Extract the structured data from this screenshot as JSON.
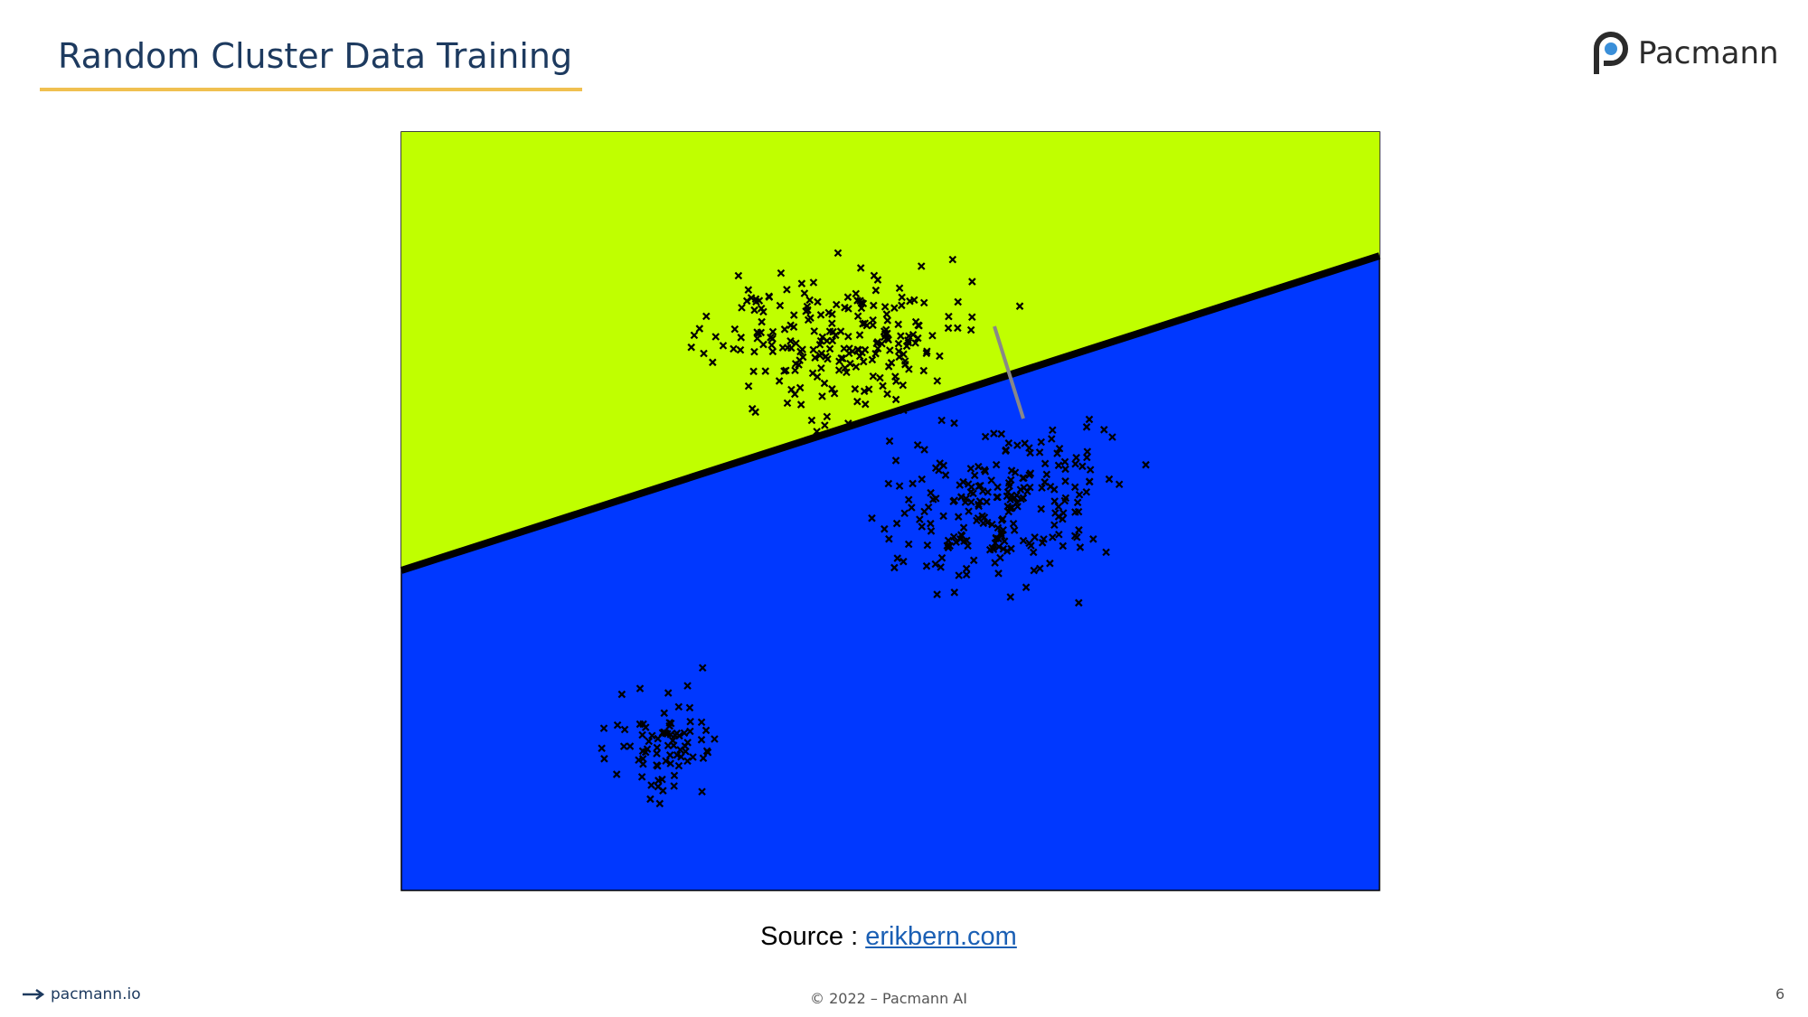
{
  "header": {
    "title": "Random Cluster Data Training",
    "logo_text": "Pacmann"
  },
  "figure": {
    "source_label": "Source :",
    "source_link": "erikbern.com"
  },
  "footer": {
    "site": "pacmann.io",
    "copyright": "© 2022 – Pacmann AI",
    "page_number": 6
  }
}
